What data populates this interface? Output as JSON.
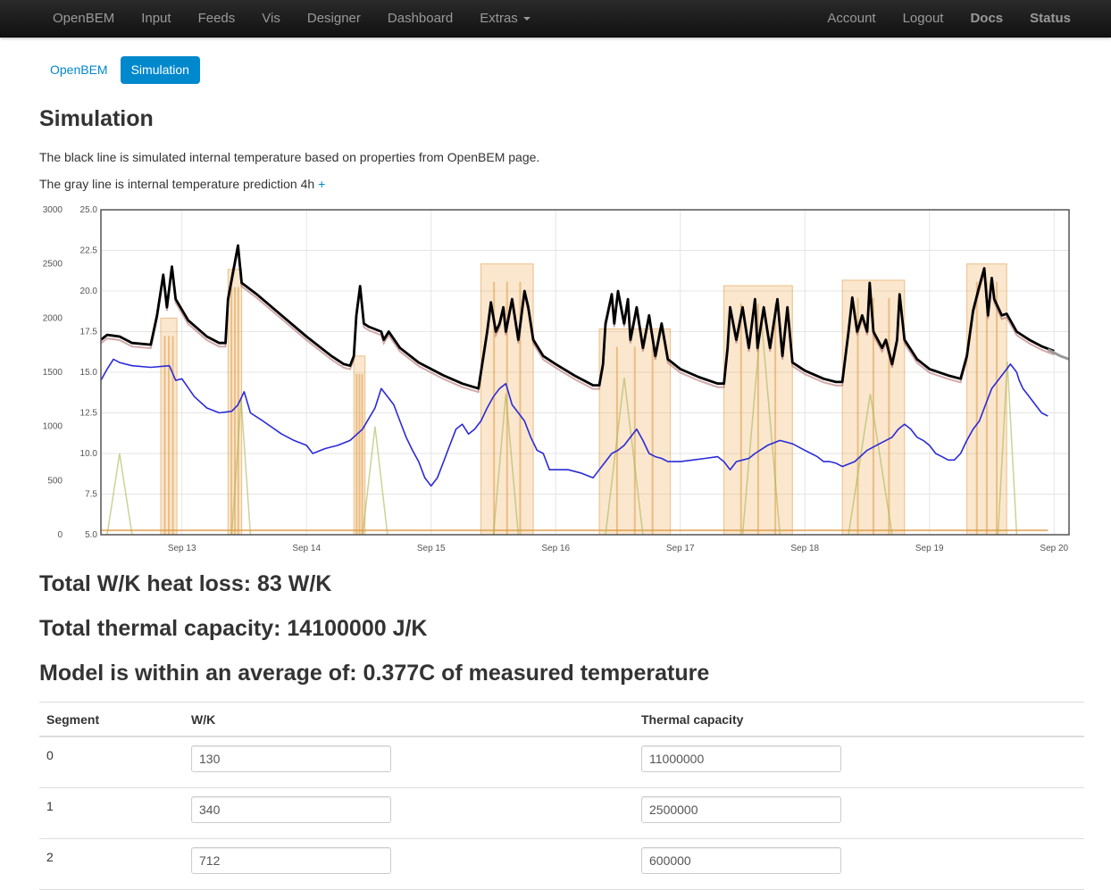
{
  "nav": {
    "left": [
      "OpenBEM",
      "Input",
      "Feeds",
      "Vis",
      "Designer",
      "Dashboard",
      "Extras"
    ],
    "right": [
      "Account",
      "Logout",
      "Docs",
      "Status"
    ]
  },
  "subnav": {
    "items": [
      "OpenBEM",
      "Simulation"
    ],
    "active": "Simulation"
  },
  "page": {
    "title": "Simulation",
    "desc1": "The black line is simulated internal temperature based on properties from OpenBEM page.",
    "desc2": "The gray line is internal temperature prediction 4h",
    "desc2_link": "+"
  },
  "results": {
    "heat_loss": "Total W/K heat loss: 83 W/K",
    "capacity": "Total thermal capacity: 14100000 J/K",
    "accuracy": "Model is within an average of: 0.377C of measured temperature"
  },
  "table": {
    "headers": [
      "Segment",
      "W/K",
      "Thermal capacity"
    ],
    "rows": [
      {
        "segment": "0",
        "wk": "130",
        "capacity": "11000000"
      },
      {
        "segment": "1",
        "wk": "340",
        "capacity": "2500000"
      },
      {
        "segment": "2",
        "wk": "712",
        "capacity": "600000"
      }
    ]
  },
  "chart_data": {
    "type": "line",
    "x_ticks": [
      "Sep 13",
      "Sep 14",
      "Sep 15",
      "Sep 16",
      "Sep 17",
      "Sep 18",
      "Sep 19",
      "Sep 20"
    ],
    "x_range_days": [
      12.35,
      20.12
    ],
    "y_left": {
      "ticks": [
        0,
        500,
        1000,
        1500,
        2000,
        2500,
        3000
      ],
      "range": [
        0,
        3000
      ]
    },
    "y_right": {
      "ticks": [
        5.0,
        7.5,
        10.0,
        12.5,
        15.0,
        17.5,
        20.0,
        22.5,
        25.0
      ],
      "range": [
        5,
        25
      ]
    },
    "grid": true,
    "colors": {
      "simulated": "#000000",
      "prediction": "#999999",
      "measured": "#c7a0a0",
      "external": "#2a2ad9",
      "heating": "#e8a850",
      "secondary": "#b8b850"
    },
    "series": [
      {
        "axis": "right",
        "color": "#000000",
        "points": [
          [
            12.35,
            17.0
          ],
          [
            12.4,
            17.3
          ],
          [
            12.5,
            17.2
          ],
          [
            12.6,
            16.8
          ],
          [
            12.75,
            16.7
          ],
          [
            12.8,
            18.5
          ],
          [
            12.85,
            21.0
          ],
          [
            12.88,
            19.0
          ],
          [
            12.92,
            21.5
          ],
          [
            12.95,
            19.5
          ],
          [
            13.05,
            18.2
          ],
          [
            13.2,
            17.2
          ],
          [
            13.3,
            16.8
          ],
          [
            13.35,
            16.8
          ],
          [
            13.37,
            19.5
          ],
          [
            13.45,
            22.8
          ],
          [
            13.48,
            20.5
          ],
          [
            13.6,
            19.8
          ],
          [
            13.8,
            18.5
          ],
          [
            14.0,
            17.2
          ],
          [
            14.2,
            16.0
          ],
          [
            14.3,
            15.5
          ],
          [
            14.35,
            15.4
          ],
          [
            14.38,
            16.0
          ],
          [
            14.4,
            18.5
          ],
          [
            14.43,
            20.3
          ],
          [
            14.46,
            18.0
          ],
          [
            14.5,
            17.8
          ],
          [
            14.6,
            17.5
          ],
          [
            14.62,
            17.0
          ],
          [
            14.66,
            17.5
          ],
          [
            14.75,
            16.5
          ],
          [
            14.9,
            15.6
          ],
          [
            15.1,
            14.8
          ],
          [
            15.25,
            14.3
          ],
          [
            15.38,
            14.0
          ],
          [
            15.4,
            15.0
          ],
          [
            15.45,
            17.5
          ],
          [
            15.48,
            19.3
          ],
          [
            15.52,
            17.5
          ],
          [
            15.55,
            18.0
          ],
          [
            15.58,
            19.0
          ],
          [
            15.6,
            17.5
          ],
          [
            15.65,
            19.5
          ],
          [
            15.7,
            17.0
          ],
          [
            15.75,
            20.0
          ],
          [
            15.78,
            19.0
          ],
          [
            15.82,
            17.0
          ],
          [
            15.9,
            16.0
          ],
          [
            16.0,
            15.5
          ],
          [
            16.15,
            14.8
          ],
          [
            16.3,
            14.2
          ],
          [
            16.35,
            14.2
          ],
          [
            16.38,
            15.5
          ],
          [
            16.4,
            18.0
          ],
          [
            16.45,
            19.8
          ],
          [
            16.47,
            18.0
          ],
          [
            16.5,
            20.0
          ],
          [
            16.55,
            18.0
          ],
          [
            16.58,
            19.5
          ],
          [
            16.6,
            17.0
          ],
          [
            16.65,
            19.0
          ],
          [
            16.7,
            16.5
          ],
          [
            16.75,
            18.5
          ],
          [
            16.8,
            16.0
          ],
          [
            16.85,
            18.0
          ],
          [
            16.9,
            15.8
          ],
          [
            17.0,
            15.2
          ],
          [
            17.15,
            14.7
          ],
          [
            17.3,
            14.3
          ],
          [
            17.35,
            14.3
          ],
          [
            17.38,
            16.5
          ],
          [
            17.4,
            19.0
          ],
          [
            17.45,
            17.0
          ],
          [
            17.5,
            19.0
          ],
          [
            17.55,
            16.5
          ],
          [
            17.6,
            19.5
          ],
          [
            17.62,
            16.5
          ],
          [
            17.67,
            19.0
          ],
          [
            17.72,
            16.5
          ],
          [
            17.78,
            19.5
          ],
          [
            17.82,
            16.0
          ],
          [
            17.86,
            19.0
          ],
          [
            17.9,
            15.6
          ],
          [
            18.0,
            15.1
          ],
          [
            18.15,
            14.6
          ],
          [
            18.25,
            14.4
          ],
          [
            18.3,
            14.4
          ],
          [
            18.35,
            17.5
          ],
          [
            18.38,
            19.6
          ],
          [
            18.42,
            17.5
          ],
          [
            18.46,
            18.5
          ],
          [
            18.5,
            17.5
          ],
          [
            18.52,
            20.5
          ],
          [
            18.55,
            17.5
          ],
          [
            18.62,
            16.5
          ],
          [
            18.65,
            17.0
          ],
          [
            18.7,
            15.5
          ],
          [
            18.74,
            17.0
          ],
          [
            18.76,
            19.8
          ],
          [
            18.8,
            17.0
          ],
          [
            18.9,
            15.8
          ],
          [
            19.0,
            15.2
          ],
          [
            19.15,
            14.8
          ],
          [
            19.25,
            14.6
          ],
          [
            19.3,
            16.0
          ],
          [
            19.35,
            18.8
          ],
          [
            19.4,
            20.3
          ],
          [
            19.44,
            21.4
          ],
          [
            19.47,
            18.5
          ],
          [
            19.5,
            20.8
          ],
          [
            19.52,
            19.5
          ],
          [
            19.58,
            18.5
          ],
          [
            19.62,
            18.6
          ],
          [
            19.7,
            17.5
          ],
          [
            19.8,
            17.0
          ],
          [
            19.9,
            16.6
          ],
          [
            20.0,
            16.3
          ]
        ]
      },
      {
        "axis": "right",
        "color": "#999999",
        "points": [
          [
            19.95,
            16.4
          ],
          [
            20.05,
            16.0
          ],
          [
            20.12,
            15.8
          ]
        ]
      },
      {
        "axis": "right",
        "color": "#2a2ad9",
        "points": [
          [
            12.35,
            14.5
          ],
          [
            12.4,
            15.2
          ],
          [
            12.45,
            15.8
          ],
          [
            12.5,
            15.6
          ],
          [
            12.6,
            15.4
          ],
          [
            12.75,
            15.3
          ],
          [
            12.9,
            15.4
          ],
          [
            12.95,
            14.5
          ],
          [
            13.0,
            14.6
          ],
          [
            13.1,
            13.5
          ],
          [
            13.2,
            12.8
          ],
          [
            13.3,
            12.5
          ],
          [
            13.4,
            12.6
          ],
          [
            13.45,
            13.0
          ],
          [
            13.5,
            13.8
          ],
          [
            13.55,
            12.5
          ],
          [
            13.65,
            12.0
          ],
          [
            13.8,
            11.2
          ],
          [
            13.9,
            10.8
          ],
          [
            14.0,
            10.5
          ],
          [
            14.05,
            10.0
          ],
          [
            14.15,
            10.3
          ],
          [
            14.25,
            10.5
          ],
          [
            14.35,
            10.8
          ],
          [
            14.45,
            11.5
          ],
          [
            14.55,
            12.8
          ],
          [
            14.6,
            14.0
          ],
          [
            14.65,
            13.5
          ],
          [
            14.7,
            13.0
          ],
          [
            14.75,
            12.0
          ],
          [
            14.8,
            11.0
          ],
          [
            14.85,
            10.2
          ],
          [
            14.9,
            9.5
          ],
          [
            14.95,
            8.5
          ],
          [
            15.0,
            8.0
          ],
          [
            15.05,
            8.5
          ],
          [
            15.1,
            9.5
          ],
          [
            15.15,
            10.5
          ],
          [
            15.2,
            11.5
          ],
          [
            15.25,
            11.8
          ],
          [
            15.3,
            11.2
          ],
          [
            15.35,
            11.5
          ],
          [
            15.4,
            12.0
          ],
          [
            15.45,
            12.8
          ],
          [
            15.5,
            13.5
          ],
          [
            15.55,
            14.0
          ],
          [
            15.6,
            14.3
          ],
          [
            15.65,
            13.0
          ],
          [
            15.7,
            12.5
          ],
          [
            15.75,
            12.0
          ],
          [
            15.8,
            11.0
          ],
          [
            15.85,
            10.2
          ],
          [
            15.9,
            10.0
          ],
          [
            15.95,
            9.0
          ],
          [
            16.0,
            9.0
          ],
          [
            16.1,
            9.0
          ],
          [
            16.2,
            8.8
          ],
          [
            16.3,
            8.5
          ],
          [
            16.35,
            9.0
          ],
          [
            16.4,
            9.5
          ],
          [
            16.45,
            10.0
          ],
          [
            16.5,
            10.2
          ],
          [
            16.55,
            10.5
          ],
          [
            16.6,
            11.0
          ],
          [
            16.65,
            11.5
          ],
          [
            16.7,
            10.8
          ],
          [
            16.75,
            10.0
          ],
          [
            16.8,
            9.8
          ],
          [
            16.85,
            9.7
          ],
          [
            16.9,
            9.5
          ],
          [
            17.0,
            9.5
          ],
          [
            17.1,
            9.6
          ],
          [
            17.2,
            9.7
          ],
          [
            17.3,
            9.8
          ],
          [
            17.35,
            9.5
          ],
          [
            17.4,
            9.0
          ],
          [
            17.45,
            9.5
          ],
          [
            17.5,
            9.6
          ],
          [
            17.55,
            9.7
          ],
          [
            17.6,
            10.0
          ],
          [
            17.7,
            10.5
          ],
          [
            17.8,
            10.8
          ],
          [
            17.9,
            10.6
          ],
          [
            18.0,
            10.2
          ],
          [
            18.05,
            10.0
          ],
          [
            18.1,
            9.8
          ],
          [
            18.15,
            9.5
          ],
          [
            18.2,
            9.5
          ],
          [
            18.25,
            9.4
          ],
          [
            18.3,
            9.2
          ],
          [
            18.4,
            9.5
          ],
          [
            18.5,
            10.2
          ],
          [
            18.6,
            10.6
          ],
          [
            18.7,
            11.0
          ],
          [
            18.75,
            11.5
          ],
          [
            18.8,
            11.8
          ],
          [
            18.85,
            11.5
          ],
          [
            18.9,
            11.0
          ],
          [
            18.95,
            10.8
          ],
          [
            19.0,
            10.5
          ],
          [
            19.05,
            10.0
          ],
          [
            19.1,
            9.8
          ],
          [
            19.15,
            9.6
          ],
          [
            19.2,
            9.6
          ],
          [
            19.25,
            10.0
          ],
          [
            19.3,
            10.8
          ],
          [
            19.35,
            11.5
          ],
          [
            19.4,
            12.0
          ],
          [
            19.45,
            13.0
          ],
          [
            19.5,
            14.0
          ],
          [
            19.55,
            14.5
          ],
          [
            19.6,
            15.0
          ],
          [
            19.65,
            15.5
          ],
          [
            19.7,
            15.0
          ],
          [
            19.72,
            14.5
          ],
          [
            19.75,
            14.0
          ],
          [
            19.8,
            13.5
          ],
          [
            19.85,
            13.0
          ],
          [
            19.9,
            12.5
          ],
          [
            19.95,
            12.3
          ]
        ]
      }
    ]
  }
}
